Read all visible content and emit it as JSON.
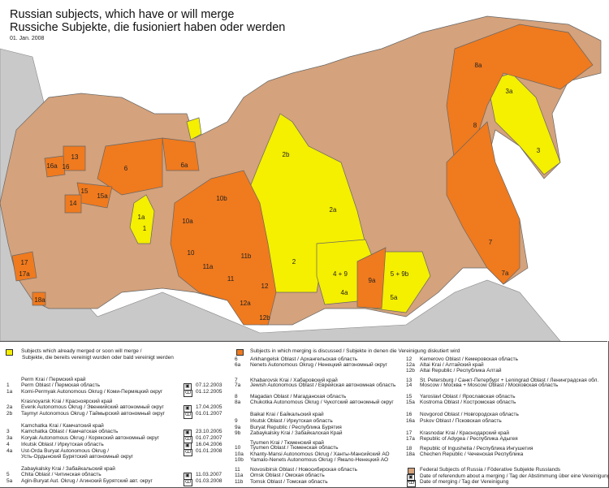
{
  "title_en": "Russian subjects, which have or will merge",
  "title_de": "Russiche Subjekte, die fusioniert haben oder werden",
  "date": "01. Jan. 2008",
  "colors": {
    "merged": "#f5ef00",
    "discussed": "#f07a1e",
    "federal": "#d4a27c",
    "other_country": "#c9c9c9",
    "sea": "#ffffff"
  },
  "map": {
    "labels": [
      "1a",
      "1",
      "2b",
      "2a",
      "2",
      "4 + 9",
      "4a",
      "5 + 9b",
      "5a",
      "9a",
      "3a",
      "3",
      "8a",
      "8",
      "7",
      "7a",
      "6",
      "6a",
      "10b",
      "10a",
      "10",
      "11a",
      "11b",
      "11",
      "12",
      "12a",
      "12b",
      "13",
      "16a",
      "16",
      "15",
      "15a",
      "14",
      "17",
      "17a",
      "18a"
    ]
  },
  "legend": {
    "merged_heading_en": "Subjects which already merged or soon will merge /",
    "merged_heading_de": "Subjekte, die bereits vereinigt wurden oder bald vereinigt werden",
    "discussed_heading": "Subjects in which merging is discussed  / Subjekte in denen die Vereinigung diskutiert wird",
    "merged_groups": [
      {
        "header": "Perm Krai / Пермский край",
        "rows": [
          [
            "1",
            "Perm Oblast / Пермская область"
          ],
          [
            "1a",
            "Komi-Permyak Autonomous Okrug / Коми-Пермяцкий округ"
          ]
        ],
        "referendum": "07.12.2003",
        "merging": "01.12.2005"
      },
      {
        "header": "Krasnoyarsk Krai / Красноярский край",
        "rows": [
          [
            "2a",
            "Evenk Autonomous Okrug / Эвенкийский автономный округ"
          ],
          [
            "2b",
            "Taymyr Autonomous Okrug / Таймырский автономный округ"
          ]
        ],
        "referendum": "17.04.2005",
        "merging": "01.01.2007"
      },
      {
        "header": "Kamchatka Krai / Камчатский край",
        "rows": [
          [
            "3",
            "Kamchatka Oblast / Камчатская область"
          ],
          [
            "3a",
            "Koryak Autonomous Okrug / Корякский автономный округ"
          ]
        ],
        "referendum": "23.10.2005",
        "merging": "01.07.2007"
      },
      {
        "header": "",
        "rows": [
          [
            "4",
            "Irkutsk Oblast / Иркутская область"
          ],
          [
            "4a",
            "Ust-Orda Buryat Autonomous Okrug /"
          ],
          [
            "",
            "Усть-Ордынский Бурятский автономный округ"
          ]
        ],
        "referendum": "16.04.2006",
        "merging": "01.01.2008"
      },
      {
        "header": "Zabaykalsky Krai / Забайкальский край",
        "rows": [
          [
            "5",
            "Chita Oblast / Читинская область"
          ],
          [
            "5a",
            "Agin-Buryat Aut. Okrug / Агинский Бурятский авт. округ"
          ]
        ],
        "referendum": "11.03.2007",
        "merging": "01.03.2008"
      }
    ],
    "discussed_col1": [
      [
        "6",
        "Arkhangelsk Oblast / Архангельская область"
      ],
      [
        "6a",
        "Nenets Autonomous Okrug / Ненецкий автономный округ"
      ],
      [
        "7",
        "Khabarovsk Krai / Хабаровский край"
      ],
      [
        "7a",
        "Jewish Autonomous Oblast / Еврейская автономная область"
      ],
      [
        "8",
        "Magadan Oblast / Магаданская область"
      ],
      [
        "8a",
        "Chukotka Autonomous Okrug / Чукотский автономный округ"
      ],
      [
        "",
        "Baikal Krai / Байкальский край"
      ],
      [
        "9",
        "Irkutsk Oblast / Иркутская область"
      ],
      [
        "9a",
        "Buryat Republic / Республика Бурятия"
      ],
      [
        "9b",
        "Zabaykalsky Krai / Забайкалская Край"
      ],
      [
        "",
        "Tyumen Krai / Тюменский край"
      ],
      [
        "10",
        "Tyumen Oblast / Тюменская область"
      ],
      [
        "10a",
        "Khanty-Mansi Autonomous Okrug / Ханты-Мансийский АО"
      ],
      [
        "10b",
        "Yamalo-Nenets Autonomous Okrug / Ямало-Ненецкий АО"
      ],
      [
        "11",
        "Novosibirsk Oblast / Новосибирская область"
      ],
      [
        "11a",
        "Omsk Oblast / Омская область"
      ],
      [
        "11b",
        "Tomsk Oblast / Томская область"
      ]
    ],
    "discussed_col2": [
      [
        "12",
        "Kemerovo Oblast / Кемеровская область"
      ],
      [
        "12a",
        "Altai Krai / Алтайский край"
      ],
      [
        "12b",
        "Altai Republic / Республика Алтай"
      ],
      [
        "13",
        "St. Petersburg / Санкт-Петербург + Leningrad Oblast / Ленинградская обл."
      ],
      [
        "14",
        "Moscow / Москва + Moscow Oblast / Московская область"
      ],
      [
        "15",
        "Yaroslavl Oblast / Ярославская область"
      ],
      [
        "15a",
        "Kostroma Oblast / Костромская область"
      ],
      [
        "16",
        "Novgorod Oblast / Новгородская область"
      ],
      [
        "16a",
        "Pskov Oblast / Псковская область"
      ],
      [
        "17",
        "Krasnodar Krai / Краснодарский край"
      ],
      [
        "17a",
        "Republic of Adygea / Республика Адыгея"
      ],
      [
        "18",
        "Republic of Ingushetia / Республика Ингушетия"
      ],
      [
        "18a",
        "Chechen Republic / Чеченская Республика"
      ]
    ],
    "key": {
      "federal": "Federal Subjects of Russia / Föderative Subjekte Russlands",
      "referendum": "Date of referendum about a merging / Tag der Abstimmung über eine Vereinigung",
      "merging": "Date of merging / Tag der Vereinigung"
    },
    "icons": {
      "referendum": "ballot-box-icon",
      "merging": "rings-icon"
    }
  }
}
